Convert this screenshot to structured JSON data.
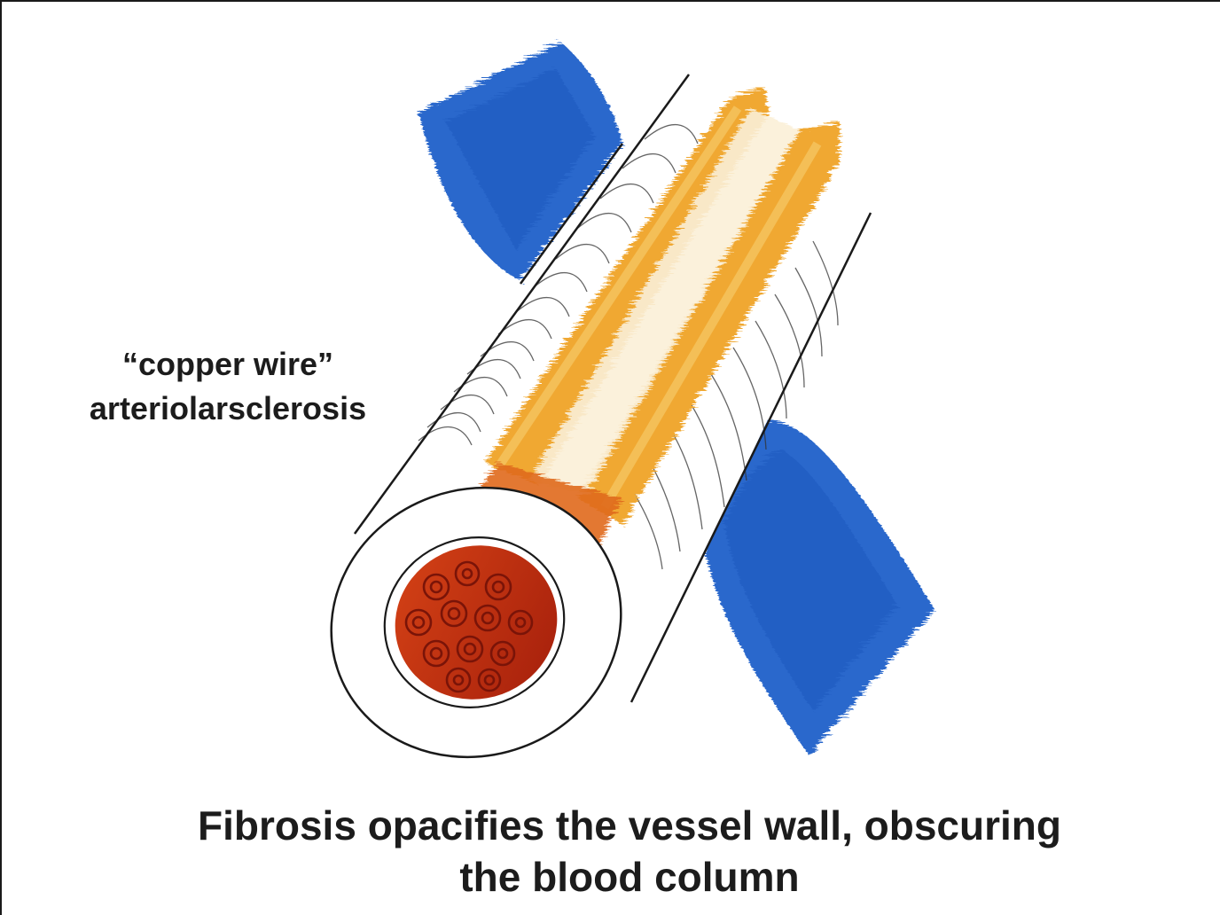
{
  "label": {
    "line1": "“copper wire”",
    "line2": "arteriolarsclerosis"
  },
  "caption": {
    "line1": "Fibrosis opacifies the vessel wall, obscuring",
    "line2": "the blood column"
  },
  "colors": {
    "vein": "#2a68cc",
    "vein_dark": "#1f55b4",
    "fibrosis_band": "#f0a830",
    "fibrosis_light": "#f7c967",
    "blood": "#b5250f",
    "blood_dark": "#7a1408",
    "vessel_wall": "#ffffff",
    "ink": "#1a1a1a"
  },
  "icons": [
    "vein-segment-top",
    "vein-segment-bottom",
    "arteriole-tube",
    "blood-column",
    "red-blood-cell"
  ]
}
